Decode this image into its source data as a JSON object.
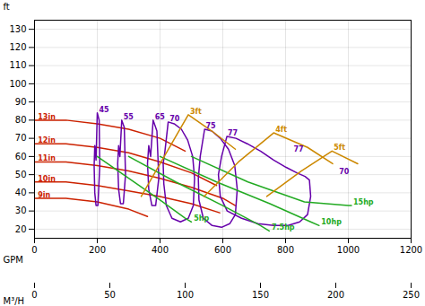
{
  "chart_data": {
    "type": "line",
    "xlabel": "GPM",
    "ylabel": "ft",
    "x2label": "M³/H",
    "xlim": [
      0,
      1200
    ],
    "xticks": [
      0,
      200,
      400,
      600,
      800,
      1000,
      1200
    ],
    "x2lim": [
      0,
      250
    ],
    "x2ticks": [
      0,
      50,
      100,
      150,
      200,
      250
    ],
    "ylim": [
      15,
      135
    ],
    "yticks": [
      20,
      30,
      40,
      50,
      60,
      70,
      80,
      90,
      100,
      110,
      120,
      130
    ],
    "grid": true,
    "series": [
      {
        "color": "#cc2200",
        "x": [
          0,
          100,
          200,
          300,
          400,
          480
        ],
        "values": [
          80,
          80,
          78,
          75,
          70,
          63
        ]
      },
      {
        "color": "#cc2200",
        "x": [
          0,
          100,
          200,
          300,
          400,
          500,
          580
        ],
        "values": [
          67,
          67,
          65,
          62,
          57,
          51,
          44
        ]
      },
      {
        "color": "#cc2200",
        "x": [
          0,
          100,
          200,
          300,
          400,
          500,
          600,
          640
        ],
        "values": [
          57,
          57,
          55,
          52,
          48,
          43,
          37,
          33
        ]
      },
      {
        "color": "#cc2200",
        "x": [
          0,
          100,
          200,
          300,
          400,
          500,
          590
        ],
        "values": [
          46,
          46,
          44,
          41,
          38,
          34,
          29
        ]
      },
      {
        "color": "#cc2200",
        "x": [
          0,
          100,
          200,
          300,
          360
        ],
        "values": [
          37,
          37,
          35,
          31,
          27
        ]
      },
      {
        "color": "#6600aa",
        "x": [
          196,
          200,
          206,
          208,
          202,
          196,
          192,
          190,
          192,
          196
        ],
        "values": [
          58,
          84,
          80,
          55,
          33,
          33,
          40,
          55,
          66,
          58
        ]
      },
      {
        "color": "#6600aa",
        "x": [
          272,
          278,
          286,
          290,
          283,
          274,
          268,
          265,
          268,
          272
        ],
        "values": [
          60,
          80,
          76,
          50,
          34,
          34,
          42,
          56,
          66,
          60
        ]
      },
      {
        "color": "#6600aa",
        "x": [
          370,
          378,
          390,
          396,
          386,
          374,
          364,
          360,
          364,
          370
        ],
        "values": [
          60,
          80,
          74,
          48,
          33,
          33,
          42,
          56,
          66,
          60
        ]
      },
      {
        "color": "#6600aa",
        "x": [
          415,
          426,
          445,
          468,
          488,
          504,
          510,
          506,
          490,
          465,
          438,
          420,
          412,
          410,
          415
        ],
        "values": [
          62,
          79,
          78,
          75,
          69,
          60,
          48,
          33,
          26,
          24,
          26,
          33,
          45,
          56,
          62
        ]
      },
      {
        "color": "#6600aa",
        "x": [
          528,
          542,
          565,
          592,
          618,
          638,
          646,
          640,
          622,
          596,
          566,
          538,
          524,
          522,
          528
        ],
        "values": [
          60,
          75,
          74,
          70,
          64,
          55,
          42,
          28,
          23,
          21,
          22,
          26,
          36,
          48,
          60
        ]
      },
      {
        "color": "#6600aa",
        "x": [
          596,
          613,
          642,
          678,
          720,
          762,
          802,
          836,
          862,
          876,
          880,
          870,
          845,
          808,
          762,
          712,
          660,
          614,
          592,
          586,
          596
        ],
        "values": [
          60,
          71,
          70,
          67,
          63,
          58,
          54,
          51,
          49,
          47,
          38,
          28,
          24,
          22,
          22,
          23,
          26,
          30,
          38,
          50,
          60
        ]
      },
      {
        "color": "#22aa22",
        "x": [
          200,
          300,
          400,
          480,
          500
        ],
        "values": [
          60,
          48,
          36,
          26,
          24
        ]
      },
      {
        "color": "#22aa22",
        "x": [
          300,
          450,
          600,
          720,
          748
        ],
        "values": [
          60,
          46,
          33,
          22,
          19
        ]
      },
      {
        "color": "#22aa22",
        "x": [
          400,
          580,
          750,
          880,
          907
        ],
        "values": [
          60,
          46,
          34,
          24,
          22
        ]
      },
      {
        "color": "#22aa22",
        "x": [
          500,
          680,
          860,
          1000,
          1010
        ],
        "values": [
          60,
          46,
          35,
          33,
          33
        ]
      },
      {
        "color": "#cc8800",
        "x": [
          340,
          420,
          490,
          565,
          640
        ],
        "values": [
          38,
          62,
          83,
          74,
          64
        ]
      },
      {
        "color": "#cc8800",
        "x": [
          540,
          650,
          762,
          870,
          950
        ],
        "values": [
          38,
          57,
          73,
          65,
          56
        ]
      },
      {
        "color": "#cc8800",
        "x": [
          740,
          850,
          948,
          1030
        ],
        "values": [
          38,
          52,
          63,
          56
        ]
      }
    ],
    "annotations": [
      {
        "text": "13in",
        "x": 5,
        "y": 80,
        "color": "#cc2200"
      },
      {
        "text": "12in",
        "x": 5,
        "y": 67,
        "color": "#cc2200"
      },
      {
        "text": "11in",
        "x": 5,
        "y": 57,
        "color": "#cc2200"
      },
      {
        "text": "10in",
        "x": 5,
        "y": 46,
        "color": "#cc2200"
      },
      {
        "text": "9in",
        "x": 5,
        "y": 37,
        "color": "#cc2200"
      },
      {
        "text": "45",
        "x": 200,
        "y": 84,
        "color": "#6600aa"
      },
      {
        "text": "55",
        "x": 278,
        "y": 80,
        "color": "#6600aa"
      },
      {
        "text": "65",
        "x": 378,
        "y": 80,
        "color": "#6600aa"
      },
      {
        "text": "70",
        "x": 425,
        "y": 79,
        "color": "#6600aa"
      },
      {
        "text": "75",
        "x": 540,
        "y": 75,
        "color": "#6600aa"
      },
      {
        "text": "77",
        "x": 610,
        "y": 71,
        "color": "#6600aa"
      },
      {
        "text": "77",
        "x": 820,
        "y": 62,
        "color": "#6600aa"
      },
      {
        "text": "70",
        "x": 965,
        "y": 50,
        "color": "#6600aa"
      },
      {
        "text": "5hp",
        "x": 502,
        "y": 24,
        "color": "#22aa22"
      },
      {
        "text": "7.5hp",
        "x": 750,
        "y": 19,
        "color": "#22aa22"
      },
      {
        "text": "10hp",
        "x": 908,
        "y": 22,
        "color": "#22aa22"
      },
      {
        "text": "15hp",
        "x": 1010,
        "y": 33,
        "color": "#22aa22"
      },
      {
        "text": "3ft",
        "x": 490,
        "y": 83,
        "color": "#cc8800"
      },
      {
        "text": "4ft",
        "x": 762,
        "y": 73,
        "color": "#cc8800"
      },
      {
        "text": "5ft",
        "x": 948,
        "y": 63,
        "color": "#cc8800"
      }
    ]
  }
}
